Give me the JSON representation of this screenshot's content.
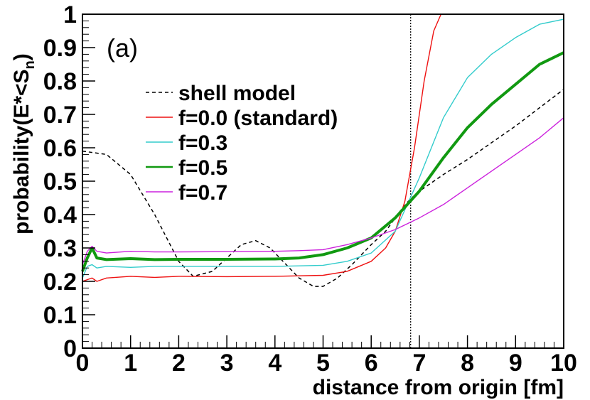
{
  "chart_data": {
    "type": "line",
    "panel_label": "(a)",
    "xlabel": "distance from origin [fm]",
    "ylabel": "probability(E*<S",
    "ylabel_sub": "n",
    "ylabel_close": ")",
    "xlim": [
      0,
      10
    ],
    "ylim": [
      0,
      1
    ],
    "x_ticks": [
      0,
      1,
      2,
      3,
      4,
      5,
      6,
      7,
      8,
      9,
      10
    ],
    "x_tick_labels": [
      "0",
      "1",
      "2",
      "3",
      "4",
      "5",
      "6",
      "7",
      "8",
      "9",
      "10"
    ],
    "y_ticks": [
      0,
      0.1,
      0.2,
      0.3,
      0.4,
      0.5,
      0.6,
      0.7,
      0.8,
      0.9,
      1
    ],
    "y_tick_labels": [
      "0",
      "0.1",
      "0.2",
      "0.3",
      "0.4",
      "0.5",
      "0.6",
      "0.7",
      "0.8",
      "0.9",
      "1"
    ],
    "reference_line_x": 6.82,
    "legend_position": "upper-middle",
    "series": [
      {
        "name": "shell model",
        "color": "#000000",
        "style": "dashed",
        "x": [
          0,
          0.5,
          1.0,
          1.5,
          2.0,
          2.3,
          2.7,
          3.0,
          3.3,
          3.6,
          3.9,
          4.2,
          4.5,
          4.8,
          5.0,
          5.3,
          5.6,
          6.0,
          6.3,
          6.6,
          6.8,
          7.0,
          7.5,
          8.0,
          8.5,
          9.0,
          9.5,
          10.0
        ],
        "y": [
          0.59,
          0.58,
          0.52,
          0.4,
          0.26,
          0.215,
          0.23,
          0.27,
          0.31,
          0.322,
          0.3,
          0.255,
          0.21,
          0.185,
          0.185,
          0.21,
          0.25,
          0.31,
          0.35,
          0.41,
          0.445,
          0.47,
          0.52,
          0.565,
          0.615,
          0.665,
          0.72,
          0.775
        ]
      },
      {
        "name": "f=0.0 (standard)",
        "color": "#ee1111",
        "style": "solid",
        "x": [
          0,
          0.1,
          0.2,
          0.3,
          0.5,
          1.0,
          1.5,
          2.0,
          3.0,
          4.0,
          5.0,
          5.5,
          6.0,
          6.3,
          6.5,
          6.7,
          6.9,
          7.1,
          7.3,
          7.45,
          8.0,
          9.0,
          10.0
        ],
        "y": [
          0.2,
          0.205,
          0.21,
          0.2,
          0.21,
          0.215,
          0.212,
          0.215,
          0.214,
          0.215,
          0.218,
          0.23,
          0.26,
          0.3,
          0.35,
          0.44,
          0.6,
          0.8,
          0.95,
          1.0,
          1.0,
          1.0,
          1.0
        ]
      },
      {
        "name": "f=0.3",
        "color": "#33cccc",
        "style": "solid",
        "x": [
          0,
          0.1,
          0.2,
          0.3,
          0.5,
          1.0,
          1.5,
          2.0,
          3.0,
          4.0,
          5.0,
          5.5,
          6.0,
          6.5,
          7.0,
          7.5,
          8.0,
          8.5,
          9.0,
          9.5,
          10.0
        ],
        "y": [
          0.21,
          0.245,
          0.25,
          0.24,
          0.245,
          0.242,
          0.245,
          0.245,
          0.245,
          0.245,
          0.248,
          0.26,
          0.285,
          0.35,
          0.51,
          0.69,
          0.81,
          0.88,
          0.93,
          0.97,
          0.985
        ]
      },
      {
        "name": "f=0.5",
        "color": "#119911",
        "style": "solid-thick",
        "x": [
          0,
          0.1,
          0.2,
          0.3,
          0.5,
          1.0,
          1.5,
          2.0,
          3.0,
          4.0,
          4.5,
          5.0,
          5.5,
          6.0,
          6.5,
          7.0,
          7.5,
          8.0,
          8.5,
          9.0,
          9.5,
          10.0
        ],
        "y": [
          0.23,
          0.27,
          0.3,
          0.27,
          0.265,
          0.268,
          0.265,
          0.266,
          0.266,
          0.267,
          0.27,
          0.28,
          0.3,
          0.33,
          0.39,
          0.47,
          0.57,
          0.66,
          0.73,
          0.79,
          0.85,
          0.885
        ]
      },
      {
        "name": "f=0.7",
        "color": "#cc22dd",
        "style": "solid",
        "x": [
          0,
          0.1,
          0.2,
          0.3,
          0.5,
          1.0,
          1.5,
          2.0,
          3.0,
          4.0,
          4.5,
          5.0,
          5.5,
          6.0,
          6.5,
          7.0,
          7.5,
          8.0,
          8.5,
          9.0,
          9.5,
          10.0
        ],
        "y": [
          0.25,
          0.29,
          0.305,
          0.29,
          0.285,
          0.29,
          0.288,
          0.288,
          0.289,
          0.29,
          0.292,
          0.295,
          0.31,
          0.33,
          0.355,
          0.39,
          0.43,
          0.48,
          0.53,
          0.58,
          0.63,
          0.69
        ]
      }
    ]
  }
}
